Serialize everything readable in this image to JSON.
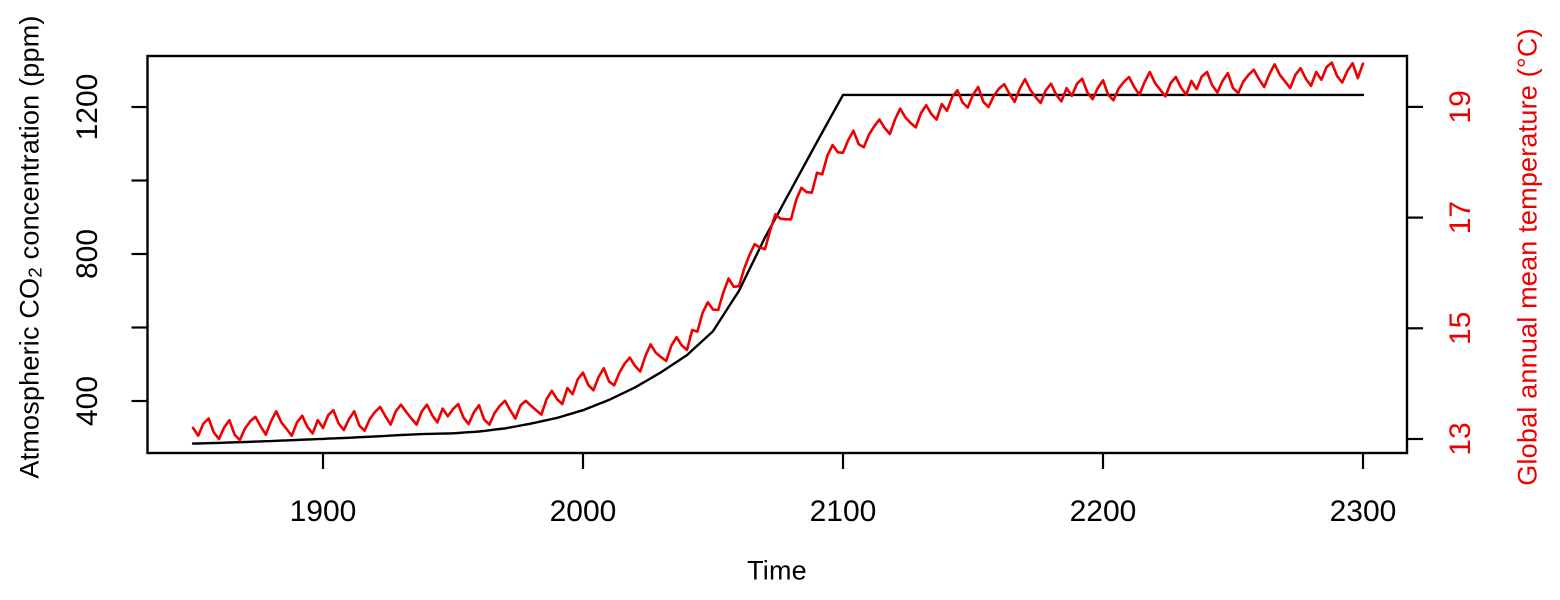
{
  "figure": {
    "background": "#ffffff",
    "frame_color": "#000000",
    "co2_color": "#000000",
    "temperature_color": "#ee0000"
  },
  "chart_data": {
    "type": "line",
    "title": "",
    "xlabel": "Time",
    "ylabel_left": "Atmospheric CO₂ concentration (ppm)",
    "ylabel_left_parts": {
      "pre": "Atmospheric CO",
      "sub": "2",
      "post": " concentration (ppm)"
    },
    "ylabel_right": "Global annual mean temperature (°C)",
    "legend": "none",
    "grid": false,
    "x_range": [
      1850,
      2300
    ],
    "x_ticks": [
      1900,
      2000,
      2100,
      2200,
      2300
    ],
    "y_left_range": [
      258,
      1344
    ],
    "y_left_tick_values": [
      400,
      600,
      800,
      1000,
      1200
    ],
    "y_left_tick_labels": [
      "400",
      "",
      "800",
      "",
      "1200"
    ],
    "y_right_range": [
      12.75,
      19.96
    ],
    "y_right_tick_values": [
      13,
      15,
      17,
      19
    ],
    "y_right_tick_labels": [
      "13",
      "15",
      "17",
      "19"
    ],
    "x_start": 1850,
    "x_step": 2,
    "x_end": 2300,
    "series": [
      {
        "id": "co2",
        "name": "Atmospheric CO₂ concentration (ppm)",
        "axis": "left",
        "color": "#000000",
        "values": [
          284,
          284.4,
          284.8,
          285.2,
          285.6,
          286,
          286.5,
          287,
          287.5,
          288,
          288.5,
          289,
          289.5,
          290,
          290.5,
          291,
          291.6,
          292.2,
          292.8,
          293.4,
          294,
          294.6,
          295.2,
          295.8,
          296.4,
          297,
          297.6,
          298.2,
          298.8,
          299.4,
          300,
          300.7,
          301.4,
          302.1,
          302.8,
          303.5,
          304.3,
          305.1,
          305.9,
          306.7,
          307.5,
          308.1,
          308.7,
          309.3,
          309.9,
          310.5,
          310.8,
          311.1,
          311.4,
          311.7,
          312,
          313,
          314,
          315,
          316,
          317,
          318.7,
          320.4,
          322.1,
          323.8,
          325.5,
          328.1,
          330.7,
          333.3,
          335.9,
          338.5,
          341.6,
          344.7,
          347.8,
          350.9,
          354,
          358.2,
          362.4,
          366.6,
          370.8,
          375,
          380.6,
          386.2,
          391.8,
          397.4,
          403,
          409.8,
          416.6,
          423.4,
          430.2,
          437,
          445.2,
          453.4,
          461.6,
          469.8,
          478,
          487.4,
          496.8,
          506.2,
          515.6,
          525,
          538,
          551,
          564,
          577,
          590,
          612,
          634,
          656,
          678,
          700,
          729,
          758,
          787,
          816,
          845,
          871,
          897,
          923,
          949,
          975,
          1001,
          1027,
          1053,
          1079,
          1105,
          1130.6,
          1156.2,
          1181.8,
          1207.4,
          1233,
          1233,
          1233,
          1233,
          1233,
          1233,
          1233,
          1233,
          1233,
          1233,
          1233,
          1233,
          1233,
          1233,
          1233,
          1233,
          1233,
          1233,
          1233,
          1233,
          1233,
          1233,
          1233,
          1233,
          1233,
          1233,
          1233,
          1233,
          1233,
          1233,
          1233,
          1233,
          1233,
          1233,
          1233,
          1233,
          1233,
          1233,
          1233,
          1233,
          1233,
          1233,
          1233,
          1233,
          1233,
          1233,
          1233,
          1233,
          1233,
          1233,
          1233,
          1233,
          1233,
          1233,
          1233,
          1233,
          1233,
          1233,
          1233,
          1233,
          1233,
          1233,
          1233,
          1233,
          1233,
          1233,
          1233,
          1233,
          1233,
          1233,
          1233,
          1233,
          1233,
          1233,
          1233,
          1233,
          1233,
          1233,
          1233,
          1233,
          1233,
          1233,
          1233,
          1233,
          1233,
          1233,
          1233,
          1233,
          1233,
          1233,
          1233,
          1233,
          1233,
          1233,
          1233,
          1233,
          1233,
          1233,
          1233,
          1233,
          1233
        ]
      },
      {
        "id": "temperature",
        "name": "Global annual mean temperature (°C)",
        "axis": "right",
        "color": "#ee0000",
        "values": [
          13.2,
          13.06,
          13.28,
          13.37,
          13.12,
          13.0,
          13.21,
          13.34,
          13.08,
          12.98,
          13.19,
          13.32,
          13.4,
          13.23,
          13.08,
          13.32,
          13.5,
          13.3,
          13.18,
          13.06,
          13.3,
          13.42,
          13.22,
          13.1,
          13.34,
          13.2,
          13.43,
          13.52,
          13.28,
          13.16,
          13.36,
          13.5,
          13.24,
          13.15,
          13.36,
          13.49,
          13.58,
          13.41,
          13.26,
          13.5,
          13.62,
          13.49,
          13.37,
          13.26,
          13.5,
          13.62,
          13.43,
          13.3,
          13.55,
          13.41,
          13.54,
          13.63,
          13.39,
          13.27,
          13.48,
          13.61,
          13.35,
          13.26,
          13.47,
          13.6,
          13.69,
          13.52,
          13.37,
          13.61,
          13.69,
          13.6,
          13.52,
          13.44,
          13.72,
          13.87,
          13.72,
          13.63,
          13.92,
          13.81,
          14.08,
          14.2,
          13.98,
          13.88,
          14.12,
          14.28,
          14.04,
          13.97,
          14.2,
          14.36,
          14.47,
          14.32,
          14.22,
          14.5,
          14.71,
          14.56,
          14.48,
          14.41,
          14.69,
          14.84,
          14.69,
          14.61,
          14.97,
          14.94,
          15.28,
          15.47,
          15.34,
          15.33,
          15.65,
          15.9,
          15.75,
          15.76,
          16.08,
          16.32,
          16.52,
          16.46,
          16.43,
          16.77,
          17.06,
          16.98,
          16.97,
          16.97,
          17.32,
          17.54,
          17.46,
          17.45,
          17.81,
          17.78,
          18.12,
          18.31,
          18.18,
          18.17,
          18.4,
          18.57,
          18.33,
          18.27,
          18.5,
          18.65,
          18.77,
          18.62,
          18.51,
          18.77,
          18.97,
          18.81,
          18.71,
          18.63,
          18.89,
          19.03,
          18.87,
          18.77,
          19.05,
          18.93,
          19.18,
          19.3,
          19.08,
          18.99,
          19.22,
          19.36,
          19.09,
          19.0,
          19.2,
          19.33,
          19.41,
          19.24,
          19.09,
          19.33,
          19.5,
          19.31,
          19.18,
          19.07,
          19.3,
          19.42,
          19.22,
          19.1,
          19.34,
          19.2,
          19.42,
          19.51,
          19.26,
          19.14,
          19.34,
          19.48,
          19.22,
          19.12,
          19.33,
          19.45,
          19.54,
          19.36,
          19.22,
          19.45,
          19.63,
          19.43,
          19.31,
          19.19,
          19.43,
          19.54,
          19.35,
          19.22,
          19.47,
          19.32,
          19.55,
          19.63,
          19.39,
          19.26,
          19.47,
          19.61,
          19.34,
          19.25,
          19.46,
          19.58,
          19.67,
          19.5,
          19.36,
          19.59,
          19.77,
          19.58,
          19.46,
          19.34,
          19.58,
          19.7,
          19.51,
          19.38,
          19.63,
          19.49,
          19.72,
          19.8,
          19.56,
          19.44,
          19.65,
          19.79,
          19.52,
          19.78
        ]
      }
    ]
  }
}
